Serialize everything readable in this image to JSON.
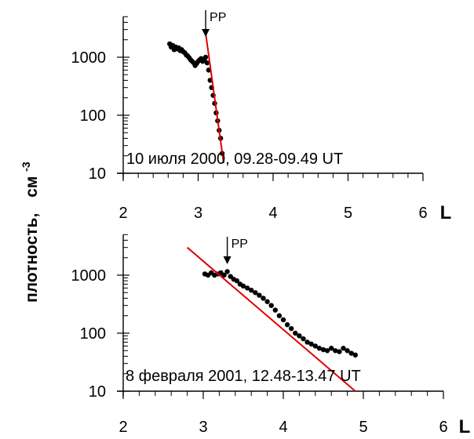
{
  "ylabel": "плотность,",
  "yunit_base": "см",
  "yunit_exp": "-3",
  "chart_data": [
    {
      "type": "scatter",
      "title": "",
      "annotation": "10 июля 2000, 09.28-09.49 UT",
      "marker_label": "PP",
      "marker_x": 3.1,
      "xlabel": "L",
      "xlim": [
        1.5,
        6
      ],
      "ylim": [
        10,
        5000
      ],
      "yscale": "log",
      "x_ticks": [
        2,
        3,
        4,
        5,
        6
      ],
      "y_ticks": [
        10,
        100,
        1000
      ],
      "grid": false,
      "series": [
        {
          "points": [
            [
              2.62,
              1700
            ],
            [
              2.64,
              1500
            ],
            [
              2.66,
              1600
            ],
            [
              2.68,
              1350
            ],
            [
              2.7,
              1500
            ],
            [
              2.72,
              1400
            ],
            [
              2.74,
              1450
            ],
            [
              2.76,
              1300
            ],
            [
              2.78,
              1350
            ],
            [
              2.8,
              1250
            ],
            [
              2.82,
              1200
            ],
            [
              2.84,
              1100
            ],
            [
              2.86,
              1050
            ],
            [
              2.88,
              980
            ],
            [
              2.9,
              900
            ],
            [
              2.92,
              850
            ],
            [
              2.94,
              800
            ],
            [
              2.96,
              720
            ],
            [
              2.98,
              780
            ],
            [
              3.0,
              850
            ],
            [
              3.02,
              900
            ],
            [
              3.04,
              950
            ],
            [
              3.06,
              850
            ],
            [
              3.08,
              900
            ],
            [
              3.1,
              1000
            ],
            [
              3.12,
              800
            ],
            [
              3.14,
              600
            ],
            [
              3.16,
              400
            ],
            [
              3.18,
              300
            ],
            [
              3.2,
              220
            ],
            [
              3.22,
              160
            ],
            [
              3.24,
              110
            ],
            [
              3.26,
              80
            ],
            [
              3.28,
              55
            ],
            [
              3.3,
              40
            ],
            [
              3.32,
              22
            ]
          ]
        }
      ],
      "fit_line": [
        [
          3.1,
          2600
        ],
        [
          3.34,
          15
        ]
      ]
    },
    {
      "type": "scatter",
      "title": "",
      "annotation": "8 февраля 2001, 12.48-13.47 UT",
      "marker_label": "PP",
      "marker_x": 3.3,
      "xlabel": "L",
      "xlim": [
        1.5,
        6
      ],
      "ylim": [
        10,
        5000
      ],
      "yscale": "log",
      "x_ticks": [
        2,
        3,
        4,
        5,
        6
      ],
      "y_ticks": [
        10,
        100,
        1000
      ],
      "grid": false,
      "series": [
        {
          "points": [
            [
              3.02,
              1050
            ],
            [
              3.06,
              1000
            ],
            [
              3.1,
              1100
            ],
            [
              3.14,
              1000
            ],
            [
              3.18,
              1050
            ],
            [
              3.22,
              1100
            ],
            [
              3.26,
              1000
            ],
            [
              3.3,
              1150
            ],
            [
              3.34,
              950
            ],
            [
              3.38,
              850
            ],
            [
              3.42,
              800
            ],
            [
              3.46,
              700
            ],
            [
              3.5,
              650
            ],
            [
              3.55,
              600
            ],
            [
              3.6,
              550
            ],
            [
              3.65,
              500
            ],
            [
              3.7,
              450
            ],
            [
              3.75,
              400
            ],
            [
              3.8,
              350
            ],
            [
              3.85,
              300
            ],
            [
              3.9,
              250
            ],
            [
              3.95,
              200
            ],
            [
              4.0,
              170
            ],
            [
              4.05,
              140
            ],
            [
              4.1,
              120
            ],
            [
              4.15,
              100
            ],
            [
              4.2,
              90
            ],
            [
              4.25,
              80
            ],
            [
              4.3,
              70
            ],
            [
              4.35,
              65
            ],
            [
              4.4,
              60
            ],
            [
              4.45,
              55
            ],
            [
              4.5,
              52
            ],
            [
              4.55,
              50
            ],
            [
              4.6,
              55
            ],
            [
              4.65,
              50
            ],
            [
              4.7,
              48
            ],
            [
              4.75,
              55
            ],
            [
              4.8,
              50
            ],
            [
              4.85,
              45
            ],
            [
              4.9,
              42
            ]
          ]
        }
      ],
      "fit_line": [
        [
          2.8,
          3000
        ],
        [
          4.9,
          10
        ]
      ]
    }
  ]
}
